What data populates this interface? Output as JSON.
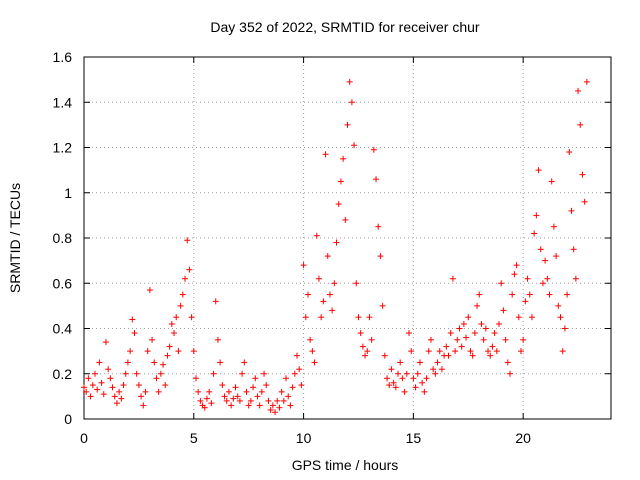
{
  "chart_data": {
    "type": "scatter",
    "title": "Day 352 of 2022, SRMTID for receiver chur",
    "xlabel": "GPS time / hours",
    "ylabel": "SRMTID / TECUs",
    "xlim": [
      0,
      24
    ],
    "ylim": [
      0,
      1.6
    ],
    "x_ticks": [
      0,
      5,
      10,
      15,
      20
    ],
    "x_tick_labels": [
      "0",
      "5",
      "10",
      "15",
      "20"
    ],
    "y_ticks": [
      0,
      0.2,
      0.4,
      0.6,
      0.8,
      1.0,
      1.2,
      1.4,
      1.6
    ],
    "y_tick_labels": [
      "0",
      "0.2",
      "0.4",
      "0.6",
      "0.8",
      "1",
      "1.2",
      "1.4",
      "1.6"
    ],
    "grid": true,
    "marker": "+",
    "color": "#ff0000",
    "series": [
      {
        "name": "SRMTID",
        "points": [
          [
            0.0,
            0.14
          ],
          [
            0.1,
            0.12
          ],
          [
            0.2,
            0.18
          ],
          [
            0.3,
            0.1
          ],
          [
            0.4,
            0.15
          ],
          [
            0.5,
            0.2
          ],
          [
            0.6,
            0.13
          ],
          [
            0.7,
            0.25
          ],
          [
            0.8,
            0.16
          ],
          [
            0.9,
            0.11
          ],
          [
            1.0,
            0.34
          ],
          [
            1.1,
            0.22
          ],
          [
            1.2,
            0.18
          ],
          [
            1.3,
            0.14
          ],
          [
            1.4,
            0.1
          ],
          [
            1.5,
            0.07
          ],
          [
            1.6,
            0.12
          ],
          [
            1.7,
            0.09
          ],
          [
            1.8,
            0.15
          ],
          [
            1.9,
            0.2
          ],
          [
            2.0,
            0.25
          ],
          [
            2.1,
            0.3
          ],
          [
            2.2,
            0.44
          ],
          [
            2.3,
            0.38
          ],
          [
            2.4,
            0.2
          ],
          [
            2.5,
            0.15
          ],
          [
            2.6,
            0.1
          ],
          [
            2.7,
            0.06
          ],
          [
            2.8,
            0.12
          ],
          [
            2.9,
            0.3
          ],
          [
            3.0,
            0.57
          ],
          [
            3.1,
            0.35
          ],
          [
            3.2,
            0.25
          ],
          [
            3.3,
            0.18
          ],
          [
            3.4,
            0.12
          ],
          [
            3.5,
            0.2
          ],
          [
            3.6,
            0.24
          ],
          [
            3.7,
            0.15
          ],
          [
            3.8,
            0.28
          ],
          [
            3.9,
            0.32
          ],
          [
            4.0,
            0.42
          ],
          [
            4.1,
            0.38
          ],
          [
            4.2,
            0.45
          ],
          [
            4.3,
            0.3
          ],
          [
            4.4,
            0.5
          ],
          [
            4.5,
            0.55
          ],
          [
            4.6,
            0.62
          ],
          [
            4.7,
            0.79
          ],
          [
            4.8,
            0.66
          ],
          [
            4.9,
            0.45
          ],
          [
            5.0,
            0.3
          ],
          [
            5.1,
            0.18
          ],
          [
            5.2,
            0.12
          ],
          [
            5.3,
            0.08
          ],
          [
            5.4,
            0.06
          ],
          [
            5.5,
            0.05
          ],
          [
            5.6,
            0.09
          ],
          [
            5.7,
            0.12
          ],
          [
            5.8,
            0.07
          ],
          [
            5.9,
            0.2
          ],
          [
            6.0,
            0.52
          ],
          [
            6.1,
            0.35
          ],
          [
            6.2,
            0.25
          ],
          [
            6.3,
            0.15
          ],
          [
            6.4,
            0.1
          ],
          [
            6.5,
            0.08
          ],
          [
            6.6,
            0.12
          ],
          [
            6.7,
            0.06
          ],
          [
            6.8,
            0.09
          ],
          [
            6.9,
            0.14
          ],
          [
            7.0,
            0.1
          ],
          [
            7.1,
            0.08
          ],
          [
            7.2,
            0.2
          ],
          [
            7.3,
            0.25
          ],
          [
            7.4,
            0.12
          ],
          [
            7.5,
            0.06
          ],
          [
            7.6,
            0.08
          ],
          [
            7.7,
            0.14
          ],
          [
            7.8,
            0.18
          ],
          [
            7.9,
            0.1
          ],
          [
            8.0,
            0.06
          ],
          [
            8.1,
            0.12
          ],
          [
            8.2,
            0.2
          ],
          [
            8.3,
            0.15
          ],
          [
            8.4,
            0.08
          ],
          [
            8.5,
            0.04
          ],
          [
            8.6,
            0.06
          ],
          [
            8.7,
            0.03
          ],
          [
            8.8,
            0.08
          ],
          [
            8.9,
            0.05
          ],
          [
            9.0,
            0.12
          ],
          [
            9.1,
            0.08
          ],
          [
            9.2,
            0.18
          ],
          [
            9.3,
            0.1
          ],
          [
            9.4,
            0.06
          ],
          [
            9.5,
            0.14
          ],
          [
            9.6,
            0.2
          ],
          [
            9.7,
            0.28
          ],
          [
            9.8,
            0.22
          ],
          [
            9.9,
            0.15
          ],
          [
            10.0,
            0.68
          ],
          [
            10.1,
            0.45
          ],
          [
            10.2,
            0.55
          ],
          [
            10.3,
            0.35
          ],
          [
            10.4,
            0.3
          ],
          [
            10.5,
            0.25
          ],
          [
            10.6,
            0.81
          ],
          [
            10.7,
            0.62
          ],
          [
            10.8,
            0.45
          ],
          [
            10.9,
            0.52
          ],
          [
            11.0,
            1.17
          ],
          [
            11.1,
            0.72
          ],
          [
            11.2,
            0.55
          ],
          [
            11.3,
            0.48
          ],
          [
            11.4,
            0.6
          ],
          [
            11.5,
            0.78
          ],
          [
            11.6,
            0.95
          ],
          [
            11.7,
            1.05
          ],
          [
            11.8,
            1.15
          ],
          [
            11.9,
            0.88
          ],
          [
            12.0,
            1.3
          ],
          [
            12.1,
            1.49
          ],
          [
            12.2,
            1.4
          ],
          [
            12.3,
            1.21
          ],
          [
            12.4,
            0.6
          ],
          [
            12.5,
            0.45
          ],
          [
            12.6,
            0.38
          ],
          [
            12.7,
            0.32
          ],
          [
            12.8,
            0.28
          ],
          [
            12.9,
            0.3
          ],
          [
            13.0,
            0.45
          ],
          [
            13.1,
            0.35
          ],
          [
            13.2,
            1.19
          ],
          [
            13.3,
            1.06
          ],
          [
            13.4,
            0.85
          ],
          [
            13.5,
            0.72
          ],
          [
            13.6,
            0.5
          ],
          [
            13.7,
            0.28
          ],
          [
            13.8,
            0.18
          ],
          [
            13.9,
            0.15
          ],
          [
            14.0,
            0.22
          ],
          [
            14.1,
            0.16
          ],
          [
            14.2,
            0.14
          ],
          [
            14.3,
            0.2
          ],
          [
            14.4,
            0.25
          ],
          [
            14.5,
            0.18
          ],
          [
            14.6,
            0.12
          ],
          [
            14.7,
            0.2
          ],
          [
            14.8,
            0.38
          ],
          [
            14.9,
            0.3
          ],
          [
            15.0,
            0.18
          ],
          [
            15.1,
            0.14
          ],
          [
            15.2,
            0.2
          ],
          [
            15.3,
            0.25
          ],
          [
            15.4,
            0.16
          ],
          [
            15.5,
            0.12
          ],
          [
            15.6,
            0.18
          ],
          [
            15.7,
            0.3
          ],
          [
            15.8,
            0.35
          ],
          [
            15.9,
            0.22
          ],
          [
            16.0,
            0.2
          ],
          [
            16.1,
            0.25
          ],
          [
            16.2,
            0.3
          ],
          [
            16.3,
            0.22
          ],
          [
            16.4,
            0.28
          ],
          [
            16.5,
            0.32
          ],
          [
            16.6,
            0.28
          ],
          [
            16.7,
            0.38
          ],
          [
            16.8,
            0.62
          ],
          [
            16.9,
            0.3
          ],
          [
            17.0,
            0.35
          ],
          [
            17.1,
            0.4
          ],
          [
            17.2,
            0.32
          ],
          [
            17.3,
            0.42
          ],
          [
            17.4,
            0.36
          ],
          [
            17.5,
            0.45
          ],
          [
            17.6,
            0.3
          ],
          [
            17.7,
            0.28
          ],
          [
            17.8,
            0.38
          ],
          [
            17.9,
            0.5
          ],
          [
            18.0,
            0.55
          ],
          [
            18.1,
            0.42
          ],
          [
            18.2,
            0.35
          ],
          [
            18.3,
            0.4
          ],
          [
            18.4,
            0.3
          ],
          [
            18.5,
            0.28
          ],
          [
            18.6,
            0.32
          ],
          [
            18.7,
            0.38
          ],
          [
            18.8,
            0.3
          ],
          [
            18.9,
            0.42
          ],
          [
            19.0,
            0.6
          ],
          [
            19.1,
            0.48
          ],
          [
            19.2,
            0.35
          ],
          [
            19.3,
            0.25
          ],
          [
            19.4,
            0.2
          ],
          [
            19.5,
            0.55
          ],
          [
            19.6,
            0.64
          ],
          [
            19.7,
            0.68
          ],
          [
            19.8,
            0.45
          ],
          [
            19.9,
            0.3
          ],
          [
            20.0,
            0.35
          ],
          [
            20.1,
            0.52
          ],
          [
            20.2,
            0.62
          ],
          [
            20.3,
            0.55
          ],
          [
            20.4,
            0.45
          ],
          [
            20.5,
            0.82
          ],
          [
            20.6,
            0.9
          ],
          [
            20.7,
            1.1
          ],
          [
            20.8,
            0.75
          ],
          [
            20.9,
            0.6
          ],
          [
            21.0,
            0.7
          ],
          [
            21.1,
            0.62
          ],
          [
            21.2,
            0.55
          ],
          [
            21.3,
            1.05
          ],
          [
            21.4,
            0.85
          ],
          [
            21.5,
            0.72
          ],
          [
            21.6,
            0.5
          ],
          [
            21.7,
            0.45
          ],
          [
            21.8,
            0.3
          ],
          [
            21.9,
            0.4
          ],
          [
            22.0,
            0.55
          ],
          [
            22.1,
            1.18
          ],
          [
            22.2,
            0.92
          ],
          [
            22.3,
            0.75
          ],
          [
            22.4,
            0.62
          ],
          [
            22.5,
            1.45
          ],
          [
            22.6,
            1.3
          ],
          [
            22.7,
            1.08
          ],
          [
            22.8,
            0.96
          ],
          [
            22.9,
            1.49
          ]
        ]
      }
    ]
  }
}
